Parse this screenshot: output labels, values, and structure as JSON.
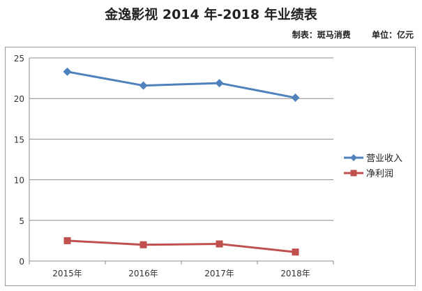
{
  "header": {
    "title": "金逸影视 2014 年-2018 年业绩表",
    "maker": "制表：斑马消费",
    "unit": "单位：亿元"
  },
  "chart_data": {
    "type": "line",
    "title": "金逸影视 2014 年-2018 年业绩表",
    "categories": [
      "2015年",
      "2016年",
      "2017年",
      "2018年"
    ],
    "ylim": [
      0,
      25
    ],
    "yticks": [
      0,
      5,
      10,
      15,
      20,
      25
    ],
    "grid": true,
    "legend_position": "right",
    "series": [
      {
        "name": "营业收入",
        "values": [
          23.3,
          21.6,
          21.9,
          20.1
        ],
        "color": "#4f81bd",
        "marker": "diamond"
      },
      {
        "name": "净利润",
        "values": [
          2.5,
          2.0,
          2.1,
          1.1
        ],
        "color": "#c0504d",
        "marker": "square"
      }
    ]
  }
}
